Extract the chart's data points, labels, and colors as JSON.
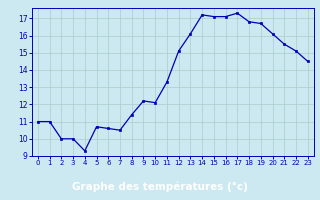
{
  "hours": [
    0,
    1,
    2,
    3,
    4,
    5,
    6,
    7,
    8,
    9,
    10,
    11,
    12,
    13,
    14,
    15,
    16,
    17,
    18,
    19,
    20,
    21,
    22,
    23
  ],
  "temperatures": [
    11.0,
    11.0,
    10.0,
    10.0,
    9.3,
    10.7,
    10.6,
    10.5,
    11.4,
    12.2,
    12.1,
    13.3,
    15.1,
    16.1,
    17.2,
    17.1,
    17.1,
    17.3,
    16.8,
    16.7,
    16.1,
    15.5,
    15.1,
    14.5
  ],
  "line_color": "#0000bb",
  "marker_color": "#0000bb",
  "bg_color": "#cce8f0",
  "grid_color": "#aacccc",
  "xlabel": "Graphe des températures (°c)",
  "xlabel_color": "white",
  "xlabel_bg": "#0000bb",
  "ylim": [
    9,
    17.6
  ],
  "yticks": [
    9,
    10,
    11,
    12,
    13,
    14,
    15,
    16,
    17
  ],
  "xticks": [
    0,
    1,
    2,
    3,
    4,
    5,
    6,
    7,
    8,
    9,
    10,
    11,
    12,
    13,
    14,
    15,
    16,
    17,
    18,
    19,
    20,
    21,
    22,
    23
  ],
  "axis_color": "#0000bb",
  "tick_color": "#0000bb"
}
